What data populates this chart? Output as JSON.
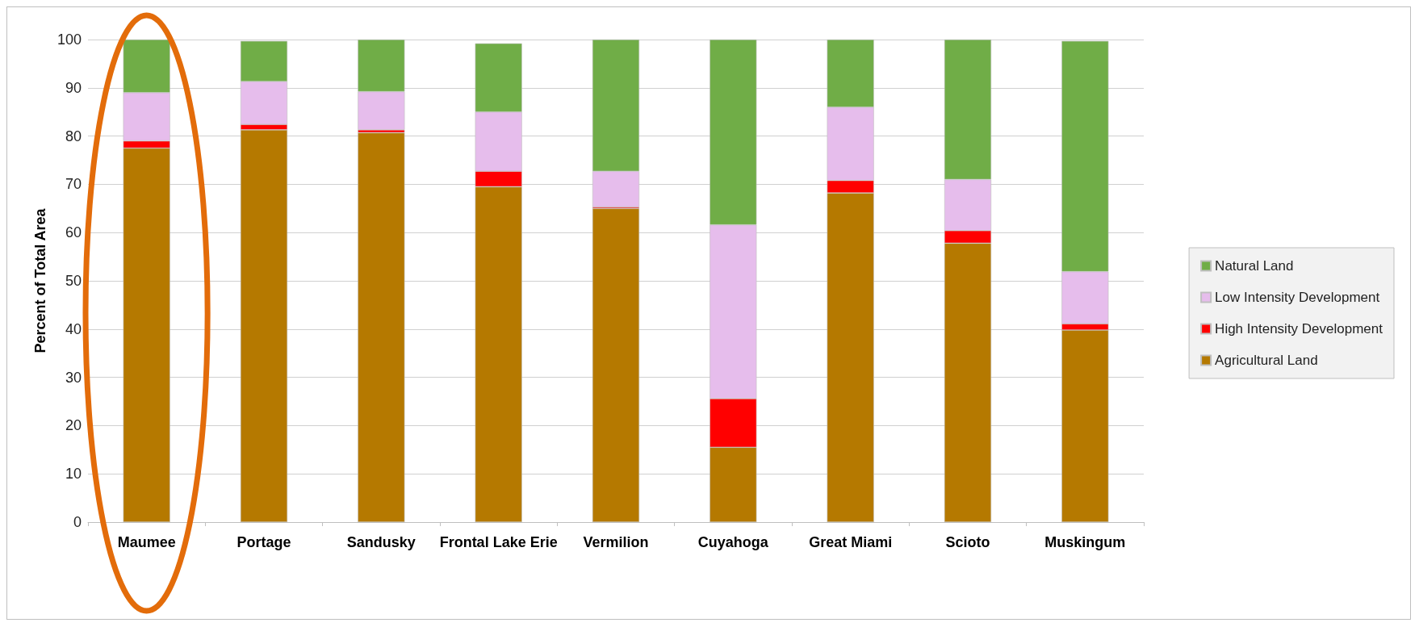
{
  "chart_data": {
    "type": "bar",
    "stacked": true,
    "ylabel": "Percent of Total Area",
    "categories": [
      "Maumee",
      "Portage",
      "Sandusky",
      "Frontal Lake Erie",
      "Vermilion",
      "Cuyahoga",
      "Great Miami",
      "Scioto",
      "Muskingum"
    ],
    "series": [
      {
        "name": "Agricultural Land",
        "color": "#b57900",
        "values": [
          77.5,
          81.3,
          80.7,
          69.5,
          65.0,
          15.5,
          68.2,
          57.8,
          39.8
        ]
      },
      {
        "name": "High Intensity Development",
        "color": "#ff0000",
        "values": [
          1.5,
          1.1,
          0.6,
          3.2,
          0.3,
          10.1,
          2.6,
          2.6,
          1.3
        ]
      },
      {
        "name": "Low Intensity Development",
        "color": "#e6bdec",
        "values": [
          10.0,
          8.9,
          7.9,
          12.3,
          7.4,
          36.0,
          15.2,
          10.6,
          10.8
        ]
      },
      {
        "name": "Natural Land",
        "color": "#70ad47",
        "values": [
          11.0,
          8.4,
          10.8,
          14.2,
          27.3,
          38.4,
          14.0,
          29.0,
          47.8
        ]
      }
    ],
    "ylim": [
      0,
      100
    ],
    "yticks": [
      0,
      10,
      20,
      30,
      40,
      50,
      60,
      70,
      80,
      90,
      100
    ],
    "grid": "y",
    "legend": "right"
  }
}
